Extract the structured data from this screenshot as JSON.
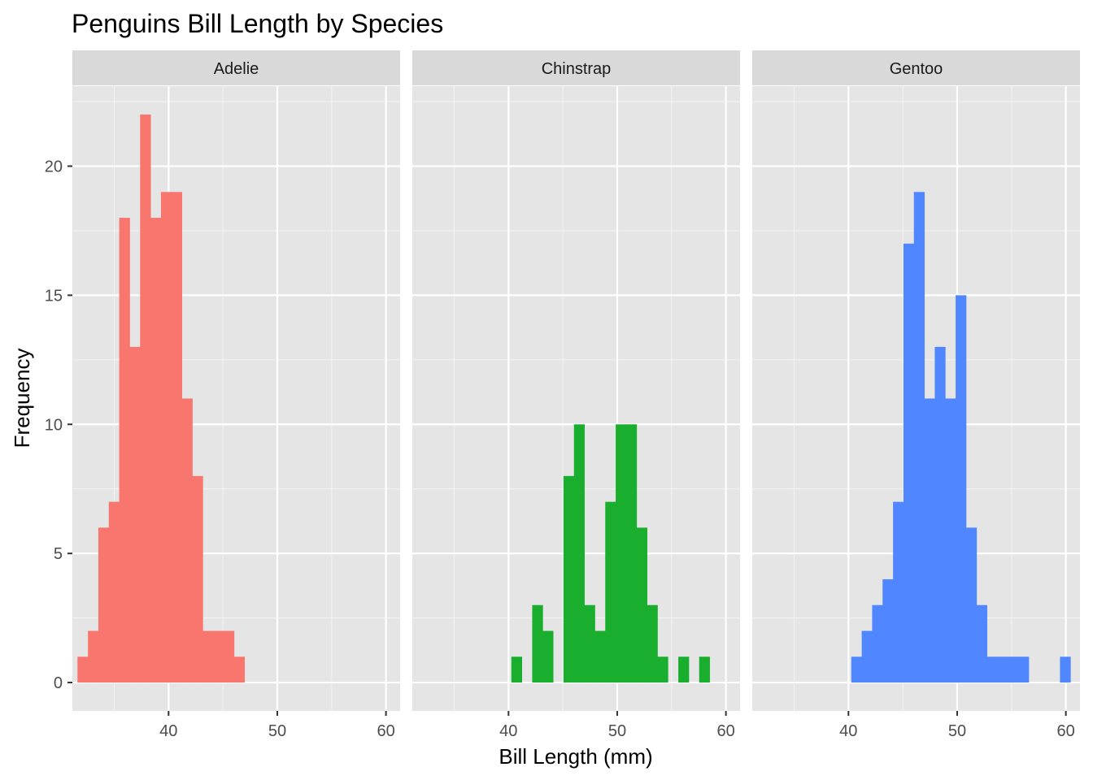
{
  "chart_data": {
    "type": "bar",
    "title": "Penguins Bill Length by Species",
    "xlabel": "Bill Length (mm)",
    "ylabel": "Frequency",
    "xlim": [
      31.15,
      61.3
    ],
    "ylim": [
      -1.1,
      23.1
    ],
    "x_ticks": [
      40,
      50,
      60
    ],
    "y_ticks": [
      0,
      5,
      10,
      15,
      20
    ],
    "x_tick_labels": [
      "40",
      "50",
      "60"
    ],
    "y_tick_labels": [
      "0",
      "5",
      "10",
      "15",
      "20"
    ],
    "bin_width": 0.96,
    "grid": true,
    "legend": "none",
    "panel_background": "#e5e5e5",
    "strip_background": "#d9d9d9",
    "grid_color": "#ffffff",
    "panels": [
      {
        "name": "Adelie",
        "color": "#f8766d",
        "bins": [
          {
            "x": 32.1,
            "count": 1
          },
          {
            "x": 33.06,
            "count": 2
          },
          {
            "x": 34.02,
            "count": 6
          },
          {
            "x": 34.98,
            "count": 7
          },
          {
            "x": 35.94,
            "count": 18
          },
          {
            "x": 36.9,
            "count": 13
          },
          {
            "x": 37.86,
            "count": 22
          },
          {
            "x": 38.82,
            "count": 18
          },
          {
            "x": 39.78,
            "count": 19
          },
          {
            "x": 40.74,
            "count": 19
          },
          {
            "x": 41.7,
            "count": 11
          },
          {
            "x": 42.66,
            "count": 8
          },
          {
            "x": 43.62,
            "count": 2
          },
          {
            "x": 44.58,
            "count": 2
          },
          {
            "x": 45.54,
            "count": 2
          },
          {
            "x": 46.5,
            "count": 1
          }
        ]
      },
      {
        "name": "Chinstrap",
        "color": "#1aae2f",
        "bins": [
          {
            "x": 40.74,
            "count": 1
          },
          {
            "x": 42.66,
            "count": 3
          },
          {
            "x": 43.62,
            "count": 2
          },
          {
            "x": 45.54,
            "count": 8
          },
          {
            "x": 46.5,
            "count": 10
          },
          {
            "x": 47.46,
            "count": 3
          },
          {
            "x": 48.42,
            "count": 2
          },
          {
            "x": 49.38,
            "count": 7
          },
          {
            "x": 50.34,
            "count": 10
          },
          {
            "x": 51.3,
            "count": 10
          },
          {
            "x": 52.26,
            "count": 6
          },
          {
            "x": 53.22,
            "count": 3
          },
          {
            "x": 54.18,
            "count": 1
          },
          {
            "x": 55.14,
            "count": 0
          },
          {
            "x": 56.1,
            "count": 1
          },
          {
            "x": 57.06,
            "count": 0
          },
          {
            "x": 58.02,
            "count": 1
          }
        ]
      },
      {
        "name": "Gentoo",
        "color": "#5086ff",
        "bins": [
          {
            "x": 40.74,
            "count": 1
          },
          {
            "x": 41.7,
            "count": 2
          },
          {
            "x": 42.66,
            "count": 3
          },
          {
            "x": 43.62,
            "count": 4
          },
          {
            "x": 44.58,
            "count": 7
          },
          {
            "x": 45.54,
            "count": 17
          },
          {
            "x": 46.5,
            "count": 19
          },
          {
            "x": 47.46,
            "count": 11
          },
          {
            "x": 48.42,
            "count": 13
          },
          {
            "x": 49.38,
            "count": 11
          },
          {
            "x": 50.34,
            "count": 15
          },
          {
            "x": 51.3,
            "count": 6
          },
          {
            "x": 52.26,
            "count": 3
          },
          {
            "x": 53.22,
            "count": 1
          },
          {
            "x": 54.18,
            "count": 1
          },
          {
            "x": 55.14,
            "count": 1
          },
          {
            "x": 56.1,
            "count": 1
          },
          {
            "x": 57.06,
            "count": 0
          },
          {
            "x": 58.02,
            "count": 0
          },
          {
            "x": 58.98,
            "count": 0
          },
          {
            "x": 59.94,
            "count": 1
          }
        ]
      }
    ]
  }
}
